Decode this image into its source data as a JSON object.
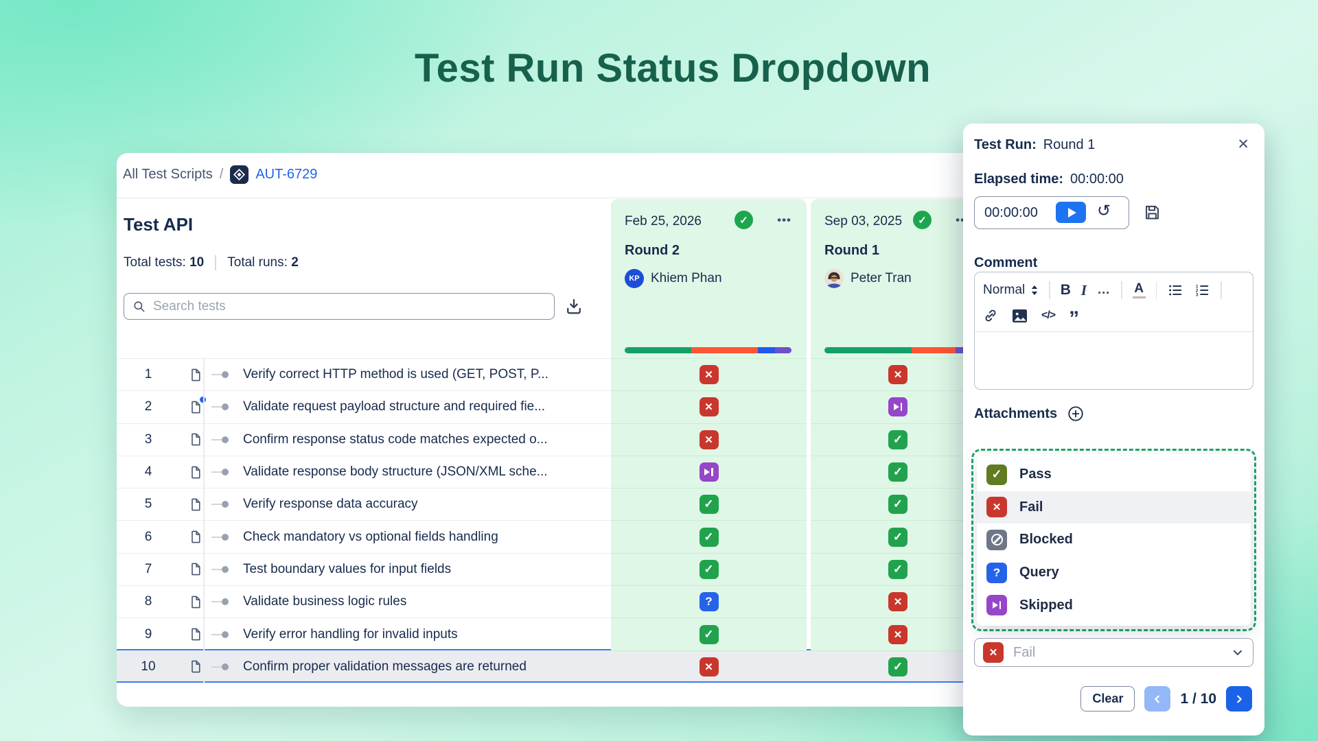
{
  "page": {
    "title": "Test Run Status Dropdown"
  },
  "breadcrumb": {
    "root": "All Test Scripts",
    "separator": "/",
    "issue_key": "AUT-6729"
  },
  "test_script": {
    "title": "Test API",
    "total_tests_label": "Total tests:",
    "total_tests_value": "10",
    "total_runs_label": "Total runs:",
    "total_runs_value": "2"
  },
  "search": {
    "placeholder": "Search tests"
  },
  "icons": {
    "check": "✓",
    "more": "•••",
    "close": "✕",
    "reset": "↺",
    "code": "</>",
    "quote": "”",
    "color_letter": "A"
  },
  "runs": [
    {
      "date": "Feb 25, 2026",
      "round": "Round 2",
      "assignee": "Khiem Phan",
      "avatar_initials": "KP",
      "progress": [
        {
          "color": "#16A069",
          "pct": 40
        },
        {
          "color": "#FC5633",
          "pct": 40
        },
        {
          "color": "#2456EB",
          "pct": 10
        },
        {
          "color": "#6C52C8",
          "pct": 10
        }
      ]
    },
    {
      "date": "Sep 03, 2025",
      "round": "Round 1",
      "assignee": "Peter Tran",
      "progress": [
        {
          "color": "#16A069",
          "pct": 60
        },
        {
          "color": "#FC5633",
          "pct": 30
        },
        {
          "color": "#6C52C8",
          "pct": 10
        }
      ]
    }
  ],
  "status_styles": {
    "pass": "#21A34D",
    "fail": "#C9372C",
    "query": "#2563E8",
    "skipped": "#9646C8",
    "blocked": "#6E7787"
  },
  "tests": [
    {
      "num": "1",
      "title": "Verify correct HTTP method is used (GET, POST, P...",
      "statuses": [
        "fail",
        "fail"
      ]
    },
    {
      "num": "2",
      "title": "Validate request payload structure and required fie...",
      "statuses": [
        "fail",
        "skipped"
      ],
      "has_update_badge": true
    },
    {
      "num": "3",
      "title": "Confirm response status code matches expected o...",
      "statuses": [
        "fail",
        "pass"
      ]
    },
    {
      "num": "4",
      "title": "Validate response body structure (JSON/XML sche...",
      "statuses": [
        "skipped",
        "pass"
      ]
    },
    {
      "num": "5",
      "title": "Verify response data accuracy",
      "statuses": [
        "pass",
        "pass"
      ]
    },
    {
      "num": "6",
      "title": "Check mandatory vs optional fields handling",
      "statuses": [
        "pass",
        "pass"
      ]
    },
    {
      "num": "7",
      "title": "Test boundary values for input fields",
      "statuses": [
        "pass",
        "pass"
      ]
    },
    {
      "num": "8",
      "title": "Validate business logic rules",
      "statuses": [
        "query",
        "fail"
      ]
    },
    {
      "num": "9",
      "title": "Verify error handling for invalid inputs",
      "statuses": [
        "pass",
        "fail"
      ]
    },
    {
      "num": "10",
      "title": "Confirm proper validation messages are returned",
      "statuses": [
        "fail",
        "pass"
      ],
      "selected": true
    }
  ],
  "panel": {
    "test_run_label": "Test Run:",
    "test_run_value": "Round 1",
    "elapsed_label": "Elapsed time:",
    "elapsed_value": "00:00:00",
    "timer": {
      "value": "00:00:00"
    },
    "comment_label": "Comment",
    "toolbar": {
      "style": "Normal",
      "bold": "B",
      "italic": "I",
      "more": "…"
    },
    "attachments_label": "Attachments",
    "dropdown": {
      "items": [
        {
          "key": "pass",
          "label": "Pass",
          "color": "#5F7C20"
        },
        {
          "key": "fail",
          "label": "Fail",
          "color": "#C9372C",
          "selected": true
        },
        {
          "key": "blocked",
          "label": "Blocked",
          "color": "#6E7787"
        },
        {
          "key": "query",
          "label": "Query",
          "color": "#2563E8"
        },
        {
          "key": "skipped",
          "label": "Skipped",
          "color": "#9646C8"
        }
      ]
    },
    "status_select": {
      "key": "fail",
      "value": "Fail"
    },
    "footer": {
      "clear_label": "Clear",
      "page_indicator": "1 / 10"
    }
  }
}
